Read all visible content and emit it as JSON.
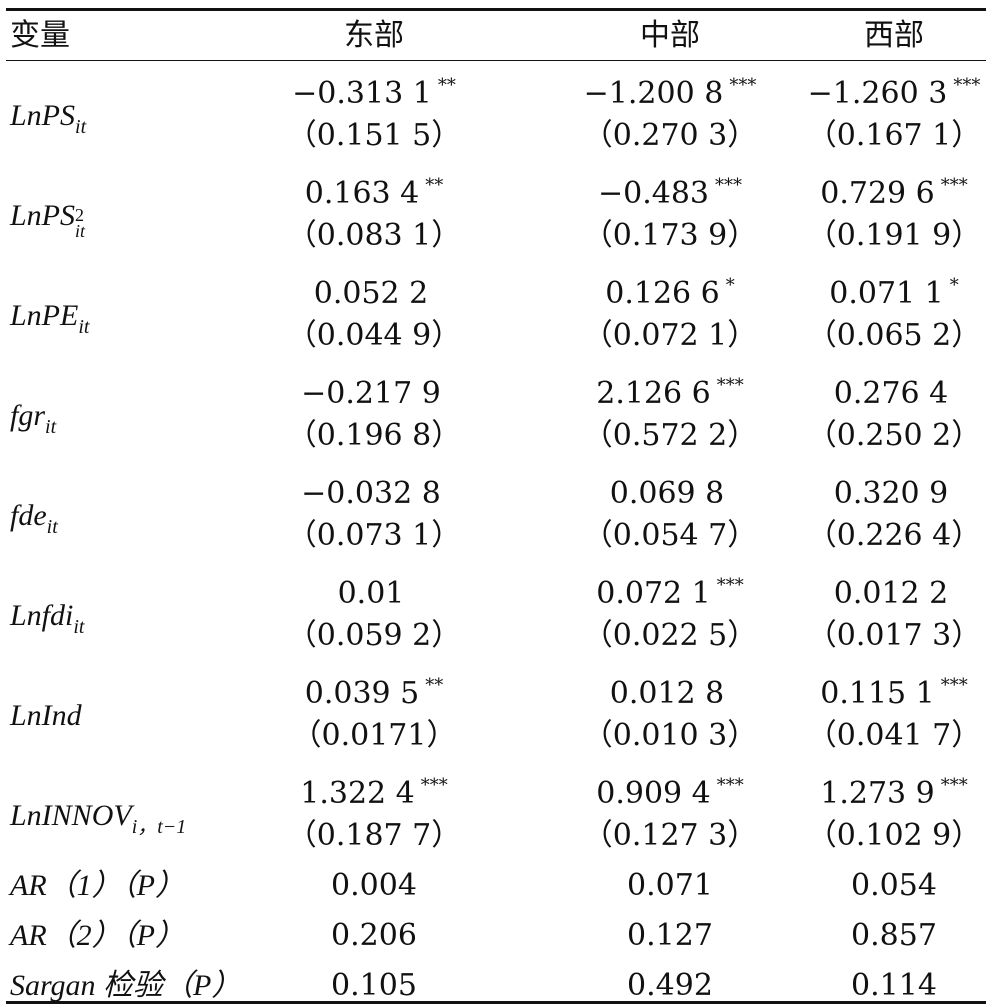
{
  "header": {
    "var": "变量",
    "east": "东部",
    "central": "中部",
    "west": "西部"
  },
  "rows": [
    {
      "var": {
        "base": "LnPS",
        "sub": "it"
      },
      "coef": [
        {
          "v": "−0.313 1",
          "s": "**"
        },
        {
          "v": "−1.200 8",
          "s": "***"
        },
        {
          "v": "−1.260 3",
          "s": "***"
        }
      ],
      "se": [
        "（0.151 5）",
        "（0.270 3）",
        "（0.167 1）"
      ]
    },
    {
      "var": {
        "base": "LnPS",
        "sub": "it",
        "sup": "2"
      },
      "coef": [
        {
          "v": "0.163 4",
          "s": "**"
        },
        {
          "v": "−0.483",
          "s": "***"
        },
        {
          "v": "0.729 6",
          "s": "***"
        }
      ],
      "se": [
        "（0.083 1）",
        "（0.173 9）",
        "（0.191 9）"
      ]
    },
    {
      "var": {
        "base": "LnPE",
        "sub": "it"
      },
      "coef": [
        {
          "v": "0.052 2",
          "s": ""
        },
        {
          "v": "0.126 6",
          "s": "*"
        },
        {
          "v": "0.071 1",
          "s": "*"
        }
      ],
      "se": [
        "（0.044 9）",
        "（0.072 1）",
        "（0.065 2）"
      ]
    },
    {
      "var": {
        "base": "fgr",
        "sub": "it"
      },
      "coef": [
        {
          "v": "−0.217 9",
          "s": ""
        },
        {
          "v": "2.126 6",
          "s": "***"
        },
        {
          "v": "0.276 4",
          "s": ""
        }
      ],
      "se": [
        "（0.196 8）",
        "（0.572 2）",
        "（0.250 2）"
      ]
    },
    {
      "var": {
        "base": "fde",
        "sub": "it"
      },
      "coef": [
        {
          "v": "−0.032 8",
          "s": ""
        },
        {
          "v": "0.069 8",
          "s": ""
        },
        {
          "v": "0.320 9",
          "s": ""
        }
      ],
      "se": [
        "（0.073 1）",
        "（0.054 7）",
        "（0.226 4）"
      ]
    },
    {
      "var": {
        "base": "Lnfdi",
        "sub": "it"
      },
      "coef": [
        {
          "v": "0.01",
          "s": ""
        },
        {
          "v": "0.072 1",
          "s": "***"
        },
        {
          "v": "0.012 2",
          "s": ""
        }
      ],
      "se": [
        "（0.059 2）",
        "（0.022 5）",
        "（0.017 3）"
      ]
    },
    {
      "var": {
        "base": "LnInd",
        "sub": ""
      },
      "coef": [
        {
          "v": "0.039 5",
          "s": "**"
        },
        {
          "v": "0.012 8",
          "s": ""
        },
        {
          "v": "0.115 1",
          "s": "***"
        }
      ],
      "se": [
        "（0.0171）",
        "（0.010 3）",
        "（0.041 7）"
      ]
    },
    {
      "var": {
        "base": "LnINNOV",
        "sub": "i，t−1"
      },
      "coef": [
        {
          "v": "1.322 4",
          "s": "***"
        },
        {
          "v": "0.909 4",
          "s": "***"
        },
        {
          "v": "1.273 9",
          "s": "***"
        }
      ],
      "se": [
        "（0.187 7）",
        "（0.127 3）",
        "（0.102 9）"
      ]
    }
  ],
  "tests": [
    {
      "label": "AR（1）（P）",
      "vals": [
        "0.004",
        "0.071",
        "0.054"
      ]
    },
    {
      "label": "AR（2）（P）",
      "vals": [
        "0.206",
        "0.127",
        "0.857"
      ]
    },
    {
      "label": "Sargan 检验（P）",
      "vals": [
        "0.105",
        "0.492",
        "0.114"
      ]
    }
  ]
}
